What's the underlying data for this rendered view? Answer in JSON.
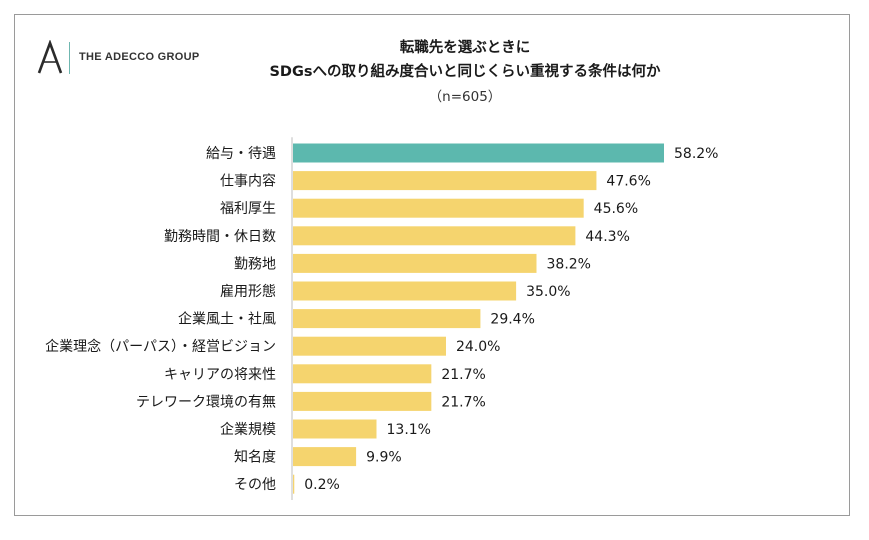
{
  "logo": {
    "text": "THE ADECCO GROUP",
    "mark": "A"
  },
  "colors": {
    "highlight": "#5cb8ae",
    "bar": "#f5d46e",
    "axis": "#bdbdbd"
  },
  "chart_data": {
    "type": "bar",
    "orientation": "horizontal",
    "title": [
      "転職先を選ぶときに",
      "SDGsへの取り組み度合いと同じくらい重視する条件は何か"
    ],
    "subtitle": "（n=605）",
    "unit": "%",
    "categories": [
      "給与・待遇",
      "仕事内容",
      "福利厚生",
      "勤務時間・休日数",
      "勤務地",
      "雇用形態",
      "企業風土・社風",
      "企業理念（パーパス）・経営ビジョン",
      "キャリアの将来性",
      "テレワーク環境の有無",
      "企業規模",
      "知名度",
      "その他"
    ],
    "values": [
      58.2,
      47.6,
      45.6,
      44.3,
      38.2,
      35.0,
      29.4,
      24.0,
      21.7,
      21.7,
      13.1,
      9.9,
      0.2
    ],
    "value_labels": [
      "58.2%",
      "47.6%",
      "45.6%",
      "44.3%",
      "38.2%",
      "35.0%",
      "29.4%",
      "24.0%",
      "21.7%",
      "21.7%",
      "13.1%",
      "9.9%",
      "0.2%"
    ],
    "highlighted_index": 0,
    "xlim": [
      0,
      60
    ],
    "grid": false,
    "legend": "none"
  }
}
